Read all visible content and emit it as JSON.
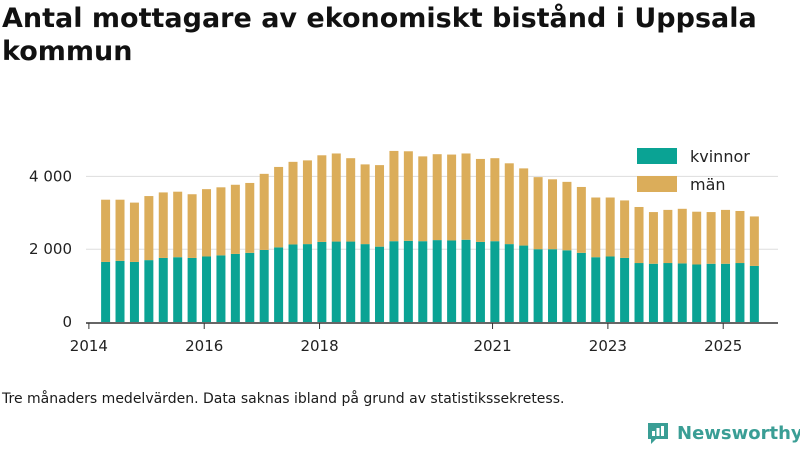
{
  "title": "Antal mottagare av ekonomiskt bistånd i Uppsala kommun",
  "caption": "Tre månaders medelvärden. Data saknas ibland på grund av statistikssekretess.",
  "brand": {
    "name": "Newsworthy",
    "icon": "newsworthy-logo-icon",
    "color": "#3a9e95"
  },
  "colors": {
    "kvinnor": "#0aa394",
    "man": "#dbad5a",
    "grid": "#dddddd",
    "axis": "#333333"
  },
  "chart_data": {
    "type": "bar",
    "stacked": true,
    "title": "Antal mottagare av ekonomiskt bistånd i Uppsala kommun",
    "xlabel": "",
    "ylabel": "",
    "ylim": [
      0,
      5000
    ],
    "yticks": [
      0,
      2000,
      4000
    ],
    "ytick_labels": [
      "0",
      "2 000",
      "4 000"
    ],
    "xlim": [
      2013.95,
      2025.95
    ],
    "xticks": [
      2014,
      2016,
      2018,
      2021,
      2023,
      2025
    ],
    "xtick_labels": [
      "2014",
      "2016",
      "2018",
      "2021",
      "2023",
      "2025"
    ],
    "legend_position": "top-right",
    "x": [
      2014.29,
      2014.54,
      2014.79,
      2015.04,
      2015.29,
      2015.54,
      2015.79,
      2016.04,
      2016.29,
      2016.54,
      2016.79,
      2017.04,
      2017.29,
      2017.54,
      2017.79,
      2018.04,
      2018.29,
      2018.54,
      2018.79,
      2019.04,
      2019.29,
      2019.54,
      2019.79,
      2020.04,
      2020.29,
      2020.54,
      2020.79,
      2021.04,
      2021.29,
      2021.54,
      2021.79,
      2022.04,
      2022.29,
      2022.54,
      2022.79,
      2023.04,
      2023.29,
      2023.54,
      2023.79,
      2024.04,
      2024.29,
      2024.54,
      2024.79,
      2025.04,
      2025.29,
      2025.54
    ],
    "series": [
      {
        "name": "kvinnor",
        "values": [
          1650,
          1680,
          1650,
          1700,
          1760,
          1780,
          1760,
          1800,
          1830,
          1870,
          1900,
          1980,
          2050,
          2130,
          2140,
          2200,
          2210,
          2210,
          2140,
          2070,
          2220,
          2230,
          2220,
          2250,
          2240,
          2260,
          2200,
          2220,
          2140,
          2100,
          2000,
          2000,
          1970,
          1900,
          1780,
          1800,
          1760,
          1620,
          1600,
          1620,
          1610,
          1580,
          1600,
          1600,
          1620,
          1540
        ]
      },
      {
        "name": "män",
        "values": [
          1710,
          1680,
          1630,
          1760,
          1800,
          1800,
          1750,
          1850,
          1870,
          1900,
          1920,
          2090,
          2210,
          2270,
          2300,
          2380,
          2420,
          2290,
          2190,
          2240,
          2480,
          2460,
          2330,
          2360,
          2360,
          2370,
          2280,
          2280,
          2220,
          2120,
          1980,
          1920,
          1880,
          1810,
          1640,
          1620,
          1580,
          1540,
          1420,
          1460,
          1500,
          1450,
          1420,
          1480,
          1430,
          1360
        ]
      }
    ]
  }
}
